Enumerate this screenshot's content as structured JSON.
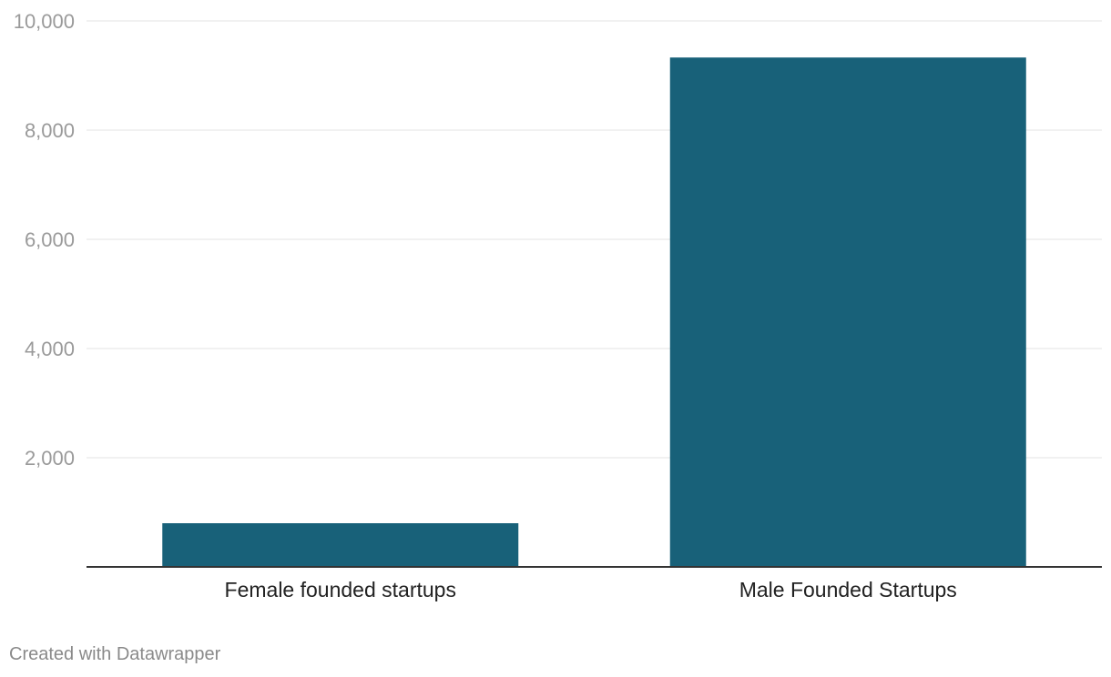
{
  "chart_data": {
    "type": "bar",
    "categories": [
      "Female founded startups",
      "Male Founded Startups"
    ],
    "values": [
      800,
      9330
    ],
    "ylim": [
      0,
      10000
    ],
    "yticks": [
      2000,
      4000,
      6000,
      8000,
      10000
    ],
    "ytick_labels": [
      "2,000",
      "4,000",
      "6,000",
      "8,000",
      "10,000"
    ],
    "grid": true,
    "title": "",
    "xlabel": "",
    "ylabel": ""
  },
  "colors": {
    "bar": "#186179",
    "grid": "#e3e3e3",
    "baseline": "#333333",
    "tick_text": "#9a9a9a",
    "category_text": "#222222",
    "credit_text": "#8a8a8a"
  },
  "footer": {
    "credit": "Created with Datawrapper"
  }
}
